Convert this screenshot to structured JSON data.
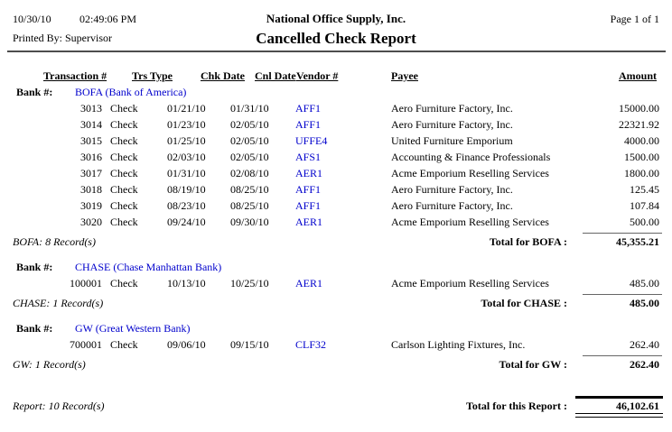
{
  "header": {
    "date": "10/30/10",
    "time": "02:49:06 PM",
    "company": "National Office Supply, Inc.",
    "page": "Page 1 of 1",
    "printed_by": "Printed By: Supervisor",
    "title": "Cancelled Check Report"
  },
  "columns": {
    "transaction": "Transaction #",
    "trs_type": "Trs Type",
    "chk_date": "Chk Date",
    "cnl_date": "Cnl Date",
    "vendor": "Vendor #",
    "payee": "Payee",
    "amount": "Amount"
  },
  "bank_label": "Bank #:",
  "colors": {
    "link_blue": "#0000cc",
    "text": "#000000"
  },
  "report": {
    "groups": [
      {
        "bank_name": "BOFA (Bank of America)",
        "rows": [
          {
            "transaction": "3013",
            "trs_type": "Check",
            "chk_date": "01/21/10",
            "cnl_date": "01/31/10",
            "vendor": "AFF1",
            "payee": "Aero Furniture Factory, Inc.",
            "amount": "15000.00"
          },
          {
            "transaction": "3014",
            "trs_type": "Check",
            "chk_date": "01/23/10",
            "cnl_date": "02/05/10",
            "vendor": "AFF1",
            "payee": "Aero Furniture Factory, Inc.",
            "amount": "22321.92"
          },
          {
            "transaction": "3015",
            "trs_type": "Check",
            "chk_date": "01/25/10",
            "cnl_date": "02/05/10",
            "vendor": "UFFE4",
            "payee": "United Furniture Emporium",
            "amount": "4000.00"
          },
          {
            "transaction": "3016",
            "trs_type": "Check",
            "chk_date": "02/03/10",
            "cnl_date": "02/05/10",
            "vendor": "AFS1",
            "payee": "Accounting & Finance Professionals",
            "amount": "1500.00"
          },
          {
            "transaction": "3017",
            "trs_type": "Check",
            "chk_date": "01/31/10",
            "cnl_date": "02/08/10",
            "vendor": "AER1",
            "payee": "Acme Emporium Reselling Services",
            "amount": "1800.00"
          },
          {
            "transaction": "3018",
            "trs_type": "Check",
            "chk_date": "08/19/10",
            "cnl_date": "08/25/10",
            "vendor": "AFF1",
            "payee": "Aero Furniture Factory, Inc.",
            "amount": "125.45"
          },
          {
            "transaction": "3019",
            "trs_type": "Check",
            "chk_date": "08/23/10",
            "cnl_date": "08/25/10",
            "vendor": "AFF1",
            "payee": "Aero Furniture Factory, Inc.",
            "amount": "107.84"
          },
          {
            "transaction": "3020",
            "trs_type": "Check",
            "chk_date": "09/24/10",
            "cnl_date": "09/30/10",
            "vendor": "AER1",
            "payee": "Acme Emporium Reselling Services",
            "amount": "500.00"
          }
        ],
        "record_count": "BOFA: 8 Record(s)",
        "total_label": "Total for BOFA :",
        "total": "45,355.21"
      },
      {
        "bank_name": "CHASE (Chase Manhattan Bank)",
        "rows": [
          {
            "transaction": "100001",
            "trs_type": "Check",
            "chk_date": "10/13/10",
            "cnl_date": "10/25/10",
            "vendor": "AER1",
            "payee": "Acme Emporium Reselling Services",
            "amount": "485.00"
          }
        ],
        "record_count": "CHASE: 1 Record(s)",
        "total_label": "Total for CHASE :",
        "total": "485.00"
      },
      {
        "bank_name": "GW (Great Western Bank)",
        "rows": [
          {
            "transaction": "700001",
            "trs_type": "Check",
            "chk_date": "09/06/10",
            "cnl_date": "09/15/10",
            "vendor": "CLF32",
            "payee": "Carlson Lighting Fixtures, Inc.",
            "amount": "262.40"
          }
        ],
        "record_count": "GW: 1 Record(s)",
        "total_label": "Total for GW :",
        "total": "262.40"
      }
    ],
    "summary": {
      "record_count": "Report: 10 Record(s)",
      "total_label": "Total for this Report :",
      "total": "46,102.61"
    }
  }
}
